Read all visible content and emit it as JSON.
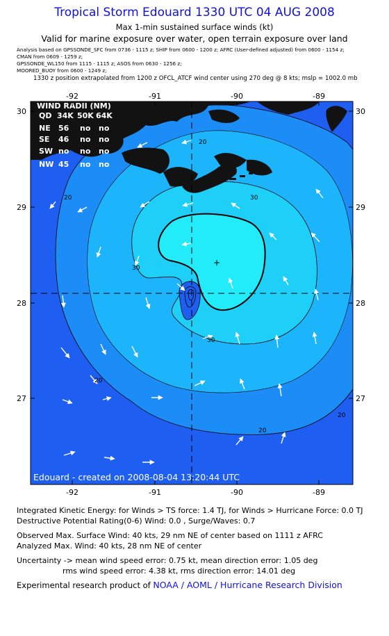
{
  "header": {
    "title": "Tropical Storm Edouard 1330 UTC 04 AUG 2008",
    "subtitle1": "Max 1-min sustained surface winds (kt)",
    "subtitle2": "Valid for marine exposure over water, open terrain exposure over land"
  },
  "analysis_lines": [
    "Analysis based on  GPSSONDE_SFC from 0736 - 1115 z;  SHIP from 0600 - 1200 z;  AFRC (User-defined adjusted) from 0600 - 1154 z;",
    "CMAN from 0609 - 1259 z;",
    "GPSSONDE_WL150 from 1115 - 1115 z;  ASOS from 0630 - 1256 z;",
    "MOORED_BUOY from 0600 - 1249 z;"
  ],
  "position_note": "1330 z position extrapolated from 1200 z OFCL_ATCF wind center using 270 deg @ 8 kts; mslp = 1002.0 mb",
  "map": {
    "x_ticks": [
      "-92",
      "-91",
      "-90",
      "-89"
    ],
    "y_ticks": [
      "30",
      "29",
      "28",
      "27"
    ],
    "contour_labels": [
      "20",
      "20",
      "20",
      "20",
      "30",
      "30",
      "30",
      "20"
    ],
    "credit": "Edouard - created on 2008-08-04 13:20:44 UTC",
    "center_marker": "+",
    "colors": {
      "outer": "#1e5ef0",
      "band2": "#1c8cf6",
      "band3": "#1cb4fa",
      "band4": "#1ed0f8",
      "core": "#22ecfa",
      "land": "#121212"
    }
  },
  "wind_radii": {
    "title": "WIND RADII (NM)",
    "header": [
      "QD",
      "34K",
      "50K",
      "64K"
    ],
    "rows": [
      {
        "qd": "NE",
        "r34": "56",
        "r50": "no",
        "r64": "no"
      },
      {
        "qd": "SE",
        "r34": "46",
        "r50": "no",
        "r64": "no"
      },
      {
        "qd": "SW",
        "r34": "no",
        "r50": "no",
        "r64": "no"
      },
      {
        "qd": "NW",
        "r34": "45",
        "r50": "no",
        "r64": "no"
      }
    ]
  },
  "footer": {
    "ike": "Integrated Kinetic Energy:  for Winds > TS force: 1.4 TJ,  for Winds > Hurricane Force: 0.0 TJ",
    "dpr": "Destructive Potential Rating(0-6)   Wind: 0.0 , Surge/Waves: 0.7",
    "observed": "Observed Max. Surface Wind: 40 kts, 29 nm NE of center based on 1111 z AFRC",
    "analyzed": "Analyzed Max. Wind: 40 kts, 28 nm NE of center",
    "uncert1": "Uncertainty -> mean wind speed error: 0.75 kt,   mean direction error: 1.05 deg",
    "uncert2": "rms wind speed error: 4.38 kt,   rms direction error: 14.01 deg",
    "credit_prefix": "Experimental research product of",
    "credit_org": "NOAA / AOML / Hurricane Research Division"
  }
}
